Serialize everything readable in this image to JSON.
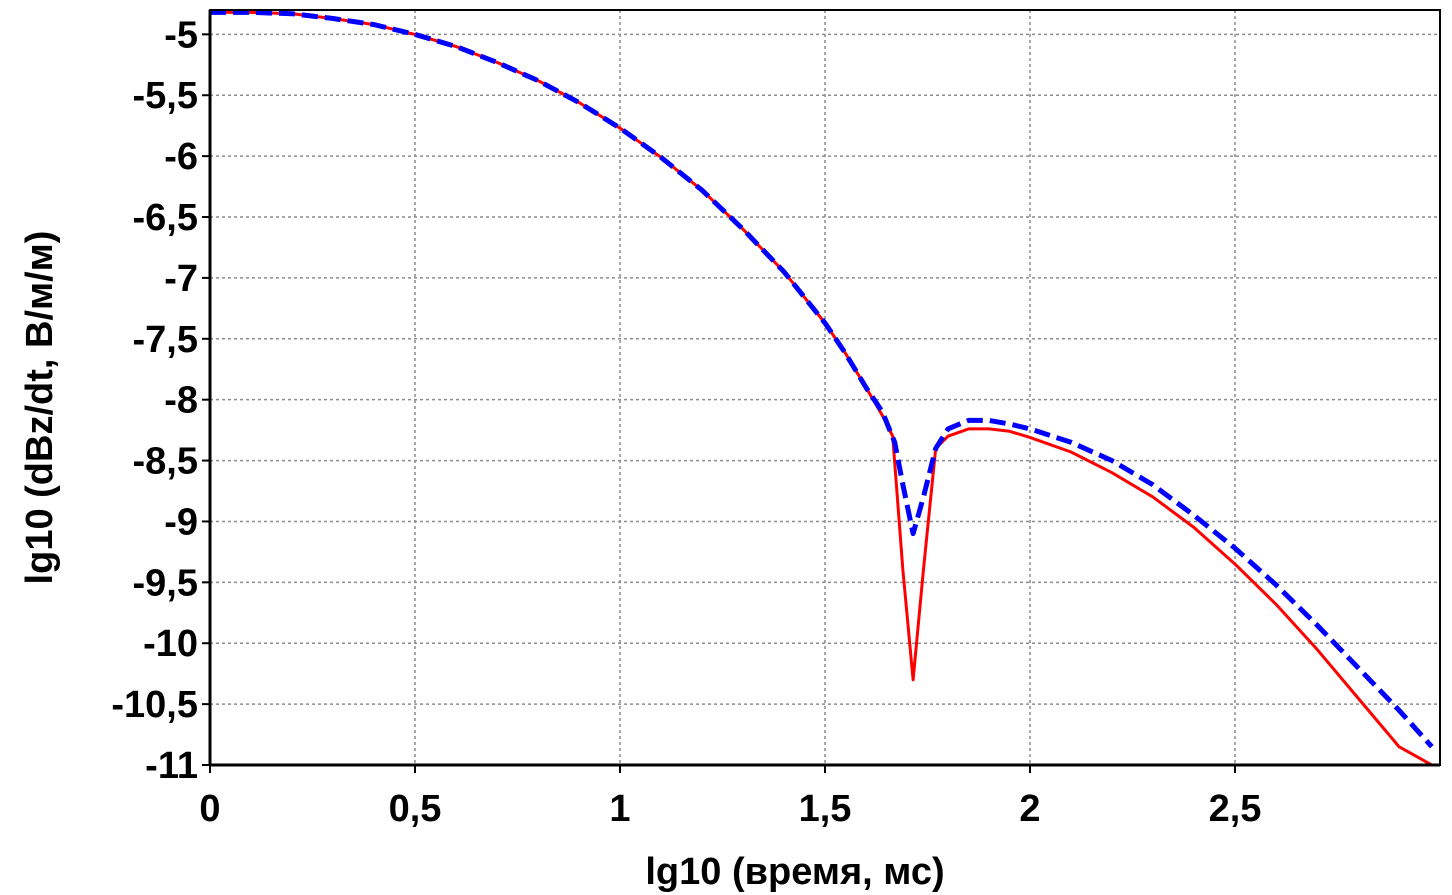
{
  "chart_data": {
    "type": "line",
    "title": "",
    "xlabel": "lg10 (время, мс)",
    "ylabel": "lg10 (dBz/dt, В/м/м)",
    "xlim": [
      0,
      3
    ],
    "ylim": [
      -11,
      -4.8
    ],
    "grid": true,
    "legend": "none",
    "x_ticks": [
      {
        "value": 0,
        "label": "0"
      },
      {
        "value": 0.5,
        "label": "0,5"
      },
      {
        "value": 1,
        "label": "1"
      },
      {
        "value": 1.5,
        "label": "1,5"
      },
      {
        "value": 2,
        "label": "2"
      },
      {
        "value": 2.5,
        "label": "2,5"
      }
    ],
    "y_ticks": [
      {
        "value": -5,
        "label": "-5"
      },
      {
        "value": -5.5,
        "label": "-5,5"
      },
      {
        "value": -6,
        "label": "-6"
      },
      {
        "value": -6.5,
        "label": "-6,5"
      },
      {
        "value": -7,
        "label": "-7"
      },
      {
        "value": -7.5,
        "label": "-7,5"
      },
      {
        "value": -8,
        "label": "-8"
      },
      {
        "value": -8.5,
        "label": "-8,5"
      },
      {
        "value": -9,
        "label": "-9"
      },
      {
        "value": -9.5,
        "label": "-9,5"
      },
      {
        "value": -10,
        "label": "-10"
      },
      {
        "value": -10.5,
        "label": "-10,5"
      },
      {
        "value": -11,
        "label": "-11"
      }
    ],
    "series": [
      {
        "color": "#ff0000",
        "style": "solid",
        "points": [
          [
            0,
            -4.82
          ],
          [
            0.1,
            -4.82
          ],
          [
            0.2,
            -4.83
          ],
          [
            0.3,
            -4.87
          ],
          [
            0.4,
            -4.92
          ],
          [
            0.5,
            -5.0
          ],
          [
            0.6,
            -5.1
          ],
          [
            0.7,
            -5.23
          ],
          [
            0.8,
            -5.38
          ],
          [
            0.9,
            -5.56
          ],
          [
            1.0,
            -5.77
          ],
          [
            1.1,
            -6.01
          ],
          [
            1.2,
            -6.28
          ],
          [
            1.3,
            -6.6
          ],
          [
            1.4,
            -6.95
          ],
          [
            1.5,
            -7.37
          ],
          [
            1.55,
            -7.62
          ],
          [
            1.6,
            -7.9
          ],
          [
            1.64,
            -8.13
          ],
          [
            1.665,
            -8.3
          ],
          [
            1.69,
            -9.4
          ],
          [
            1.715,
            -10.3
          ],
          [
            1.74,
            -9.4
          ],
          [
            1.77,
            -8.4
          ],
          [
            1.8,
            -8.3
          ],
          [
            1.85,
            -8.24
          ],
          [
            1.9,
            -8.24
          ],
          [
            1.95,
            -8.26
          ],
          [
            2.0,
            -8.31
          ],
          [
            2.1,
            -8.43
          ],
          [
            2.2,
            -8.6
          ],
          [
            2.3,
            -8.8
          ],
          [
            2.4,
            -9.05
          ],
          [
            2.5,
            -9.35
          ],
          [
            2.6,
            -9.68
          ],
          [
            2.7,
            -10.05
          ],
          [
            2.8,
            -10.45
          ],
          [
            2.9,
            -10.85
          ],
          [
            2.98,
            -11.0
          ]
        ]
      },
      {
        "color": "#0000ff",
        "style": "dashed",
        "points": [
          [
            0,
            -4.82
          ],
          [
            0.1,
            -4.82
          ],
          [
            0.2,
            -4.83
          ],
          [
            0.3,
            -4.87
          ],
          [
            0.4,
            -4.92
          ],
          [
            0.5,
            -5.0
          ],
          [
            0.6,
            -5.1
          ],
          [
            0.7,
            -5.23
          ],
          [
            0.8,
            -5.38
          ],
          [
            0.9,
            -5.56
          ],
          [
            1.0,
            -5.77
          ],
          [
            1.1,
            -6.01
          ],
          [
            1.2,
            -6.28
          ],
          [
            1.3,
            -6.6
          ],
          [
            1.4,
            -6.95
          ],
          [
            1.5,
            -7.37
          ],
          [
            1.55,
            -7.62
          ],
          [
            1.6,
            -7.9
          ],
          [
            1.64,
            -8.1
          ],
          [
            1.67,
            -8.35
          ],
          [
            1.69,
            -8.7
          ],
          [
            1.715,
            -9.1
          ],
          [
            1.74,
            -8.8
          ],
          [
            1.77,
            -8.4
          ],
          [
            1.8,
            -8.24
          ],
          [
            1.85,
            -8.17
          ],
          [
            1.9,
            -8.17
          ],
          [
            1.95,
            -8.2
          ],
          [
            2.0,
            -8.24
          ],
          [
            2.1,
            -8.35
          ],
          [
            2.2,
            -8.5
          ],
          [
            2.3,
            -8.7
          ],
          [
            2.4,
            -8.95
          ],
          [
            2.5,
            -9.22
          ],
          [
            2.6,
            -9.52
          ],
          [
            2.7,
            -9.85
          ],
          [
            2.8,
            -10.2
          ],
          [
            2.9,
            -10.55
          ],
          [
            2.98,
            -10.85
          ]
        ]
      }
    ]
  }
}
